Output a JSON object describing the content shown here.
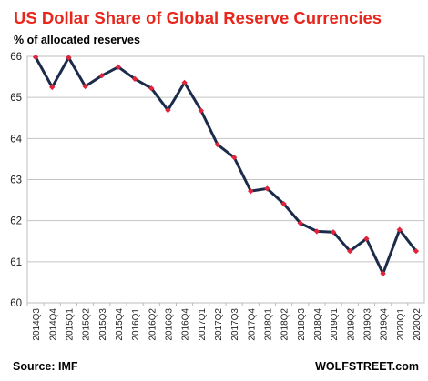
{
  "chart_data": {
    "type": "line",
    "title": "US Dollar Share of Global  Reserve Currencies",
    "ylabel": "% of allocated reserves",
    "xlabel": "",
    "ylim": [
      60,
      66
    ],
    "yticks": [
      "60",
      "61",
      "62",
      "63",
      "64",
      "65",
      "66"
    ],
    "grid": true,
    "legend": "none",
    "categories": [
      "2014Q3",
      "2014Q4",
      "2015Q1",
      "2015Q2",
      "2015Q3",
      "2015Q4",
      "2016Q1",
      "2016Q2",
      "2016Q3",
      "2016Q4",
      "2017Q1",
      "2017Q2",
      "2017Q3",
      "2017Q4",
      "2018Q1",
      "2018Q2",
      "2018Q3",
      "2018Q4",
      "2019Q1",
      "2019Q2",
      "2019Q3",
      "2019Q4",
      "2020Q1",
      "2020Q2"
    ],
    "series": [
      {
        "values": [
          65.98,
          65.25,
          65.97,
          65.27,
          65.53,
          65.74,
          65.45,
          65.22,
          64.69,
          65.36,
          64.68,
          63.85,
          63.54,
          62.72,
          62.78,
          62.41,
          61.94,
          61.74,
          61.72,
          61.26,
          61.56,
          60.71,
          61.78,
          61.26
        ]
      }
    ],
    "line_color": "#1c2b4a",
    "marker_color": "#e0243c",
    "source": "Source: IMF",
    "brand": "WOLFSTREET.com"
  }
}
